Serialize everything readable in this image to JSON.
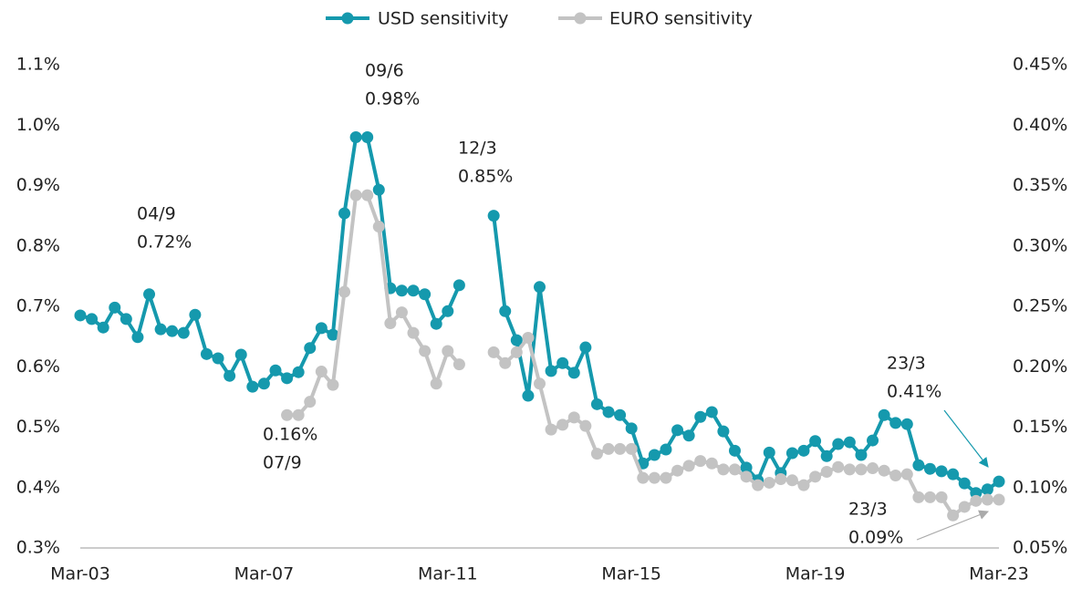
{
  "chart_data": {
    "type": "line",
    "categories": [
      "Mar-03",
      null,
      null,
      null,
      null,
      null,
      null,
      null,
      null,
      null,
      null,
      null,
      null,
      null,
      null,
      null,
      "Mar-07",
      null,
      null,
      null,
      null,
      null,
      null,
      null,
      null,
      null,
      null,
      null,
      null,
      null,
      null,
      null,
      "Mar-11",
      null,
      null,
      null,
      null,
      null,
      null,
      null,
      null,
      null,
      null,
      null,
      null,
      null,
      null,
      null,
      "Mar-15",
      null,
      null,
      null,
      null,
      null,
      null,
      null,
      null,
      null,
      null,
      null,
      null,
      null,
      null,
      null,
      "Mar-19",
      null,
      null,
      null,
      null,
      null,
      null,
      null,
      null,
      null,
      null,
      null,
      null,
      null,
      null,
      null,
      "Mar-23"
    ],
    "series": [
      {
        "name": "USD sensitivity",
        "color": "#1599ad",
        "values": [
          0.685,
          0.679,
          0.665,
          0.698,
          0.679,
          0.649,
          0.72,
          0.662,
          0.659,
          0.656,
          0.686,
          0.621,
          0.614,
          0.585,
          0.62,
          0.567,
          0.572,
          0.594,
          0.581,
          0.591,
          0.631,
          0.664,
          0.653,
          0.854,
          0.98,
          0.98,
          0.893,
          0.73,
          0.726,
          0.726,
          0.72,
          0.671,
          0.692,
          0.735,
          null,
          null,
          0.85,
          0.692,
          0.644,
          0.552,
          0.732,
          0.593,
          0.606,
          0.59,
          0.632,
          0.538,
          0.525,
          0.52,
          0.498,
          0.44,
          0.454,
          0.463,
          0.495,
          0.486,
          0.517,
          0.525,
          0.493,
          0.461,
          0.433,
          0.412,
          0.458,
          0.424,
          0.457,
          0.461,
          0.477,
          0.452,
          0.472,
          0.475,
          0.454,
          0.478,
          0.52,
          0.507,
          0.505,
          0.437,
          0.431,
          0.427,
          0.422,
          0.407,
          0.391,
          0.397,
          0.41
        ]
      },
      {
        "name": "EURO sensitivity",
        "color": "#c3c3c3",
        "axis": "y2",
        "values": [
          null,
          null,
          null,
          null,
          null,
          null,
          null,
          null,
          null,
          null,
          null,
          null,
          null,
          null,
          null,
          null,
          null,
          null,
          0.16,
          0.16,
          0.171,
          0.196,
          0.185,
          0.262,
          0.342,
          0.342,
          0.316,
          0.236,
          0.245,
          0.228,
          0.213,
          0.186,
          0.213,
          0.202,
          null,
          null,
          0.212,
          0.203,
          0.212,
          0.224,
          0.186,
          0.148,
          0.152,
          0.158,
          0.151,
          0.128,
          0.132,
          0.132,
          0.132,
          0.108,
          0.108,
          0.108,
          0.114,
          0.118,
          0.122,
          0.12,
          0.115,
          0.115,
          0.109,
          0.102,
          0.104,
          0.107,
          0.106,
          0.102,
          0.109,
          0.113,
          0.117,
          0.115,
          0.115,
          0.116,
          0.114,
          0.11,
          0.111,
          0.092,
          0.092,
          0.092,
          0.077,
          0.084,
          0.089,
          0.09,
          0.09
        ]
      }
    ],
    "ylim": [
      0.3,
      1.1
    ],
    "yticks": [
      {
        "value": 0.3,
        "label": "0.3%"
      },
      {
        "value": 0.4,
        "label": "0.4%"
      },
      {
        "value": 0.5,
        "label": "0.5%"
      },
      {
        "value": 0.6,
        "label": "0.6%"
      },
      {
        "value": 0.7,
        "label": "0.7%"
      },
      {
        "value": 0.8,
        "label": "0.8%"
      },
      {
        "value": 0.9,
        "label": "0.9%"
      },
      {
        "value": 1.0,
        "label": "1.0%"
      },
      {
        "value": 1.1,
        "label": "1.1%"
      }
    ],
    "y2lim": [
      0.05,
      0.45
    ],
    "y2ticks": [
      {
        "value": 0.05,
        "label": "0.05%"
      },
      {
        "value": 0.1,
        "label": "0.10%"
      },
      {
        "value": 0.15,
        "label": "0.15%"
      },
      {
        "value": 0.2,
        "label": "0.20%"
      },
      {
        "value": 0.25,
        "label": "0.25%"
      },
      {
        "value": 0.3,
        "label": "0.30%"
      },
      {
        "value": 0.35,
        "label": "0.35%"
      },
      {
        "value": 0.4,
        "label": "0.40%"
      },
      {
        "value": 0.45,
        "label": "0.45%"
      }
    ],
    "grid": false,
    "legend": "top",
    "annotations": [
      {
        "lines": [
          "04/9",
          "0.72%"
        ]
      },
      {
        "lines": [
          "09/6",
          "0.98%"
        ]
      },
      {
        "lines": [
          "12/3",
          "0.85%"
        ]
      },
      {
        "lines": [
          "0.16%",
          "07/9"
        ]
      },
      {
        "lines": [
          "23/3",
          "0.41%"
        ]
      },
      {
        "lines": [
          "23/3",
          "0.09%"
        ]
      }
    ]
  }
}
